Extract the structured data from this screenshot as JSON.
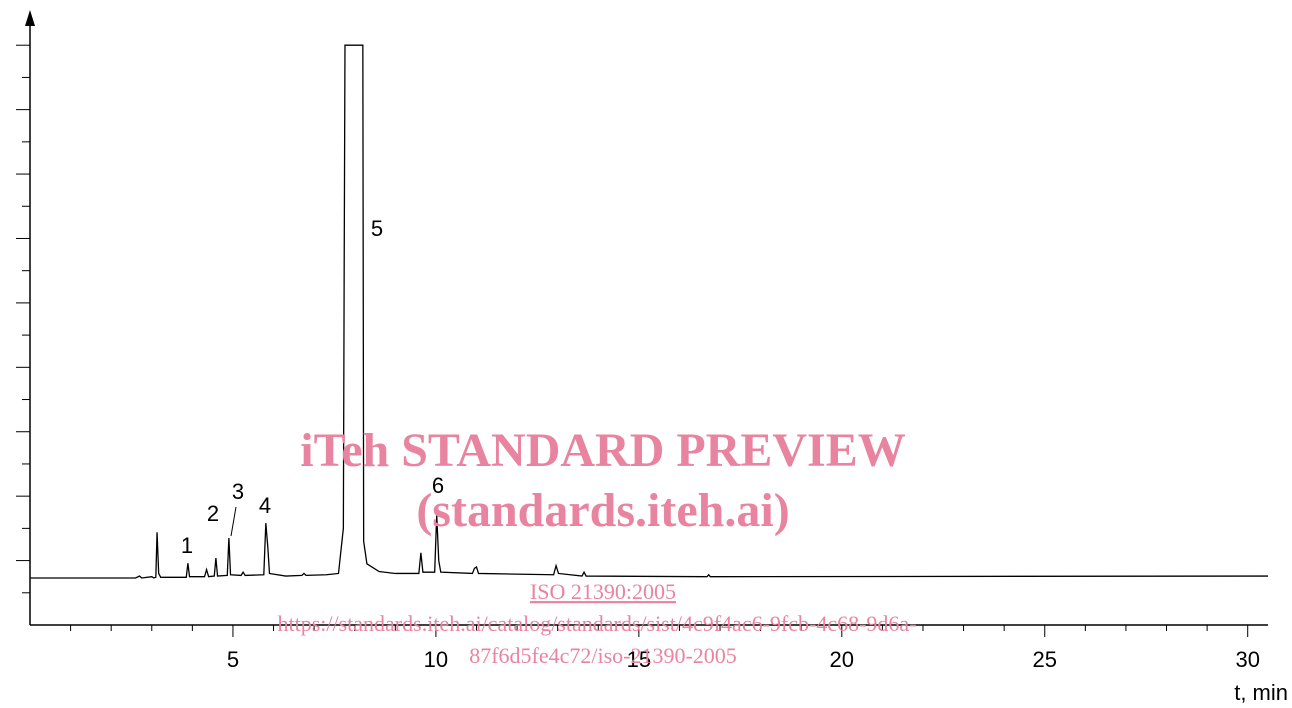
{
  "chart_data": {
    "type": "line",
    "color": "#000000",
    "x": [
      0,
      2.6,
      2.7,
      2.75,
      3.0,
      3.05,
      3.1,
      3.13,
      3.17,
      3.22,
      3.85,
      3.89,
      3.93,
      4.3,
      4.35,
      4.4,
      4.54,
      4.58,
      4.62,
      4.86,
      4.9,
      4.94,
      5.2,
      5.25,
      5.3,
      5.76,
      5.81,
      5.86,
      5.9,
      6.3,
      6.7,
      6.75,
      6.8,
      7.3,
      7.6,
      7.72,
      7.74,
      7.76,
      8.2,
      8.22,
      8.3,
      8.6,
      9.0,
      9.58,
      9.63,
      9.68,
      9.97,
      10.02,
      10.07,
      10.12,
      10.9,
      10.95,
      11.0,
      11.05,
      12.9,
      12.96,
      13.02,
      13.6,
      13.65,
      13.7,
      16.68,
      16.72,
      16.76,
      30.5
    ],
    "values": [
      0.73,
      0.73,
      0.76,
      0.73,
      0.75,
      0.73,
      0.74,
      1.44,
      0.8,
      0.74,
      0.74,
      0.96,
      0.75,
      0.75,
      0.86,
      0.75,
      0.76,
      1.04,
      0.76,
      0.77,
      1.35,
      0.78,
      0.77,
      0.82,
      0.77,
      0.78,
      1.58,
      1.2,
      0.8,
      0.76,
      0.77,
      0.8,
      0.77,
      0.78,
      0.8,
      1.5,
      5.5,
      9.0,
      9.0,
      1.3,
      0.95,
      0.83,
      0.8,
      0.8,
      1.12,
      0.82,
      0.82,
      1.71,
      1.0,
      0.82,
      0.8,
      0.88,
      0.9,
      0.8,
      0.78,
      0.92,
      0.8,
      0.76,
      0.82,
      0.76,
      0.75,
      0.78,
      0.75,
      0.76
    ],
    "xlim": [
      0,
      30.5
    ],
    "ylim": [
      0,
      9.5
    ],
    "xticks": [
      5,
      10,
      15,
      20,
      25,
      30
    ],
    "xminor_ticks": [
      1,
      2,
      3,
      4,
      6,
      7,
      8,
      9,
      11,
      12,
      13,
      14,
      16,
      17,
      18,
      19,
      21,
      22,
      23,
      24,
      26,
      27,
      28,
      29
    ],
    "yticks": [
      0.5,
      1,
      1.5,
      2,
      2.5,
      3,
      3.5,
      4,
      4.5,
      5,
      5.5,
      6,
      6.5,
      7,
      7.5,
      8,
      8.5,
      9
    ],
    "xlabel": "t, min",
    "annotations": [
      "1",
      "2",
      "3",
      "4",
      "5",
      "6"
    ]
  },
  "watermark": {
    "title": "iTeh STANDARD PREVIEW",
    "subtitle": "(standards.iteh.ai)",
    "standard": "ISO 21390:2005",
    "url_line1": "https://standards.iteh.ai/catalog/standards/sist/4c9f4ac6-9fcb-4c68-9d6a-",
    "url_line2": "87f6d5fe4c72/iso-21390-2005"
  }
}
